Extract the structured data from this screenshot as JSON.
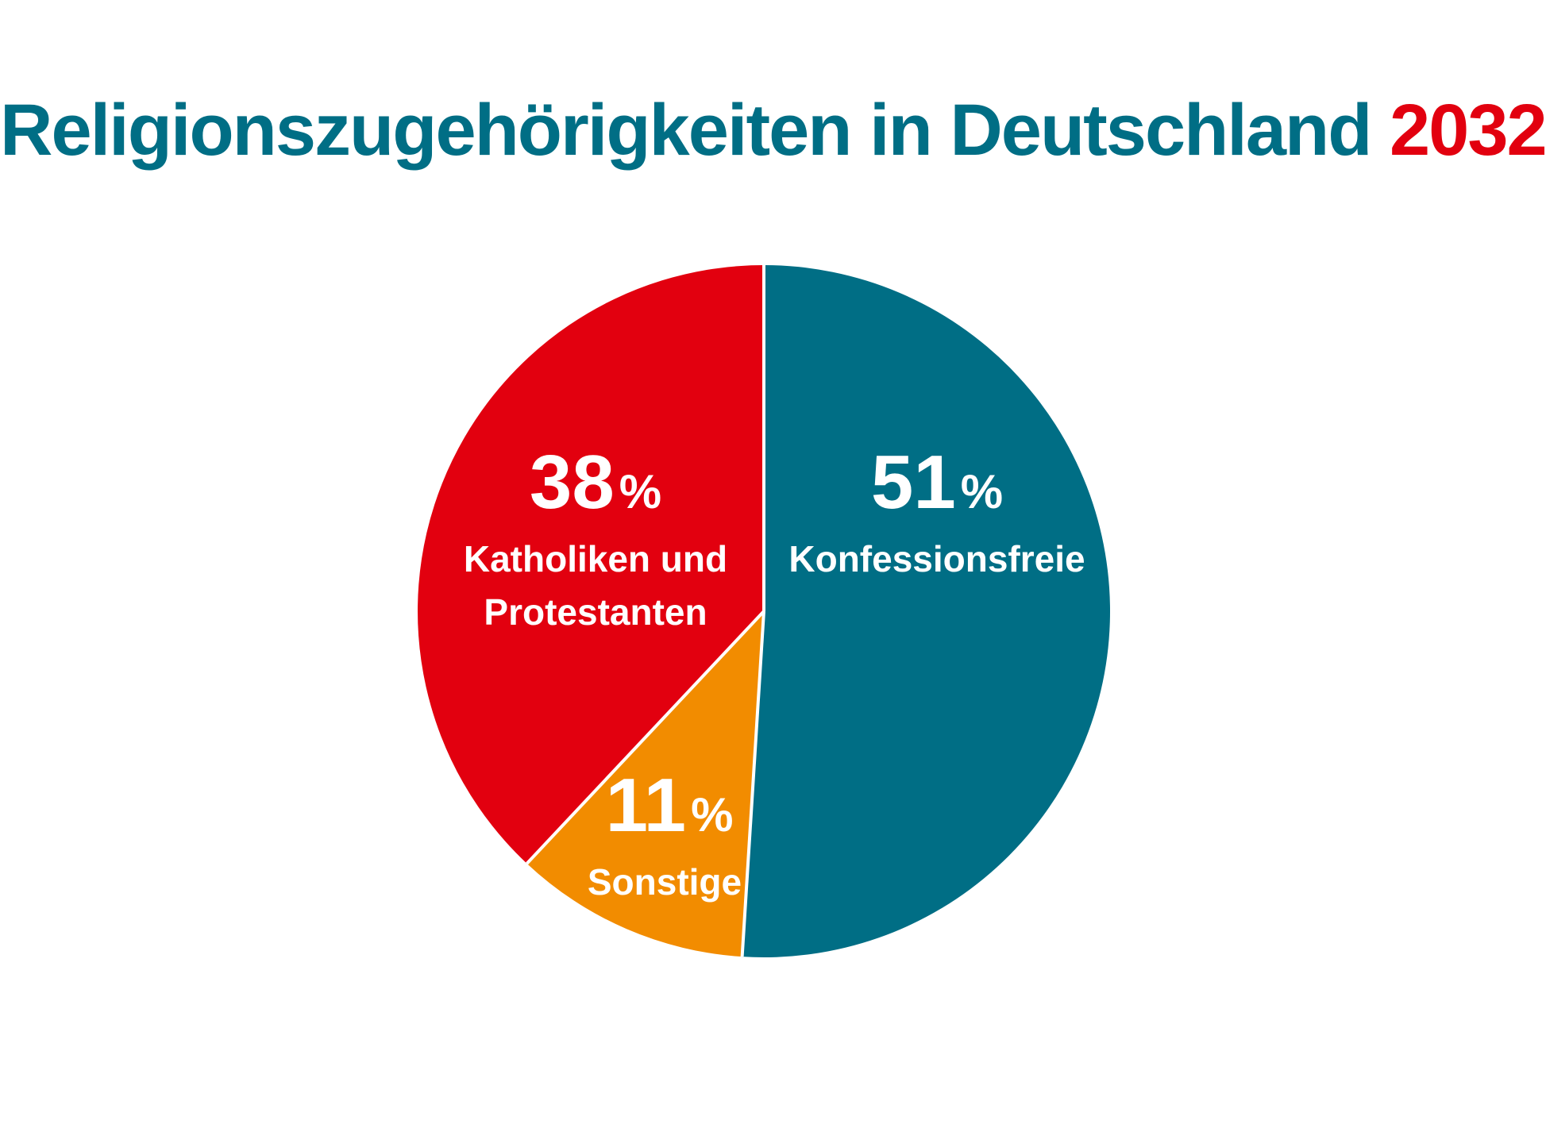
{
  "title": {
    "main": "Religionszugehörigkeiten in Deutschland",
    "year": "2032"
  },
  "colors": {
    "title": "#006e85",
    "year": "#e2000f",
    "konfessionsfreie": "#006e85",
    "sonstige": "#f28c00",
    "katholiken_protestanten": "#e2000f",
    "separator": "#ffffff"
  },
  "chart_data": {
    "type": "pie",
    "title": "Religionszugehörigkeiten in Deutschland 2032",
    "start": "top",
    "direction": "clockwise",
    "slices": [
      {
        "label_lines": [
          "Konfessionsfreie"
        ],
        "value": 51,
        "value_text": "51",
        "unit": "%",
        "color": "#006e85"
      },
      {
        "label_lines": [
          "Sonstige"
        ],
        "value": 11,
        "value_text": "11",
        "unit": "%",
        "color": "#f28c00"
      },
      {
        "label_lines": [
          "Katholiken und",
          "Protestanten"
        ],
        "value": 38,
        "value_text": "38",
        "unit": "%",
        "color": "#e2000f"
      }
    ]
  }
}
